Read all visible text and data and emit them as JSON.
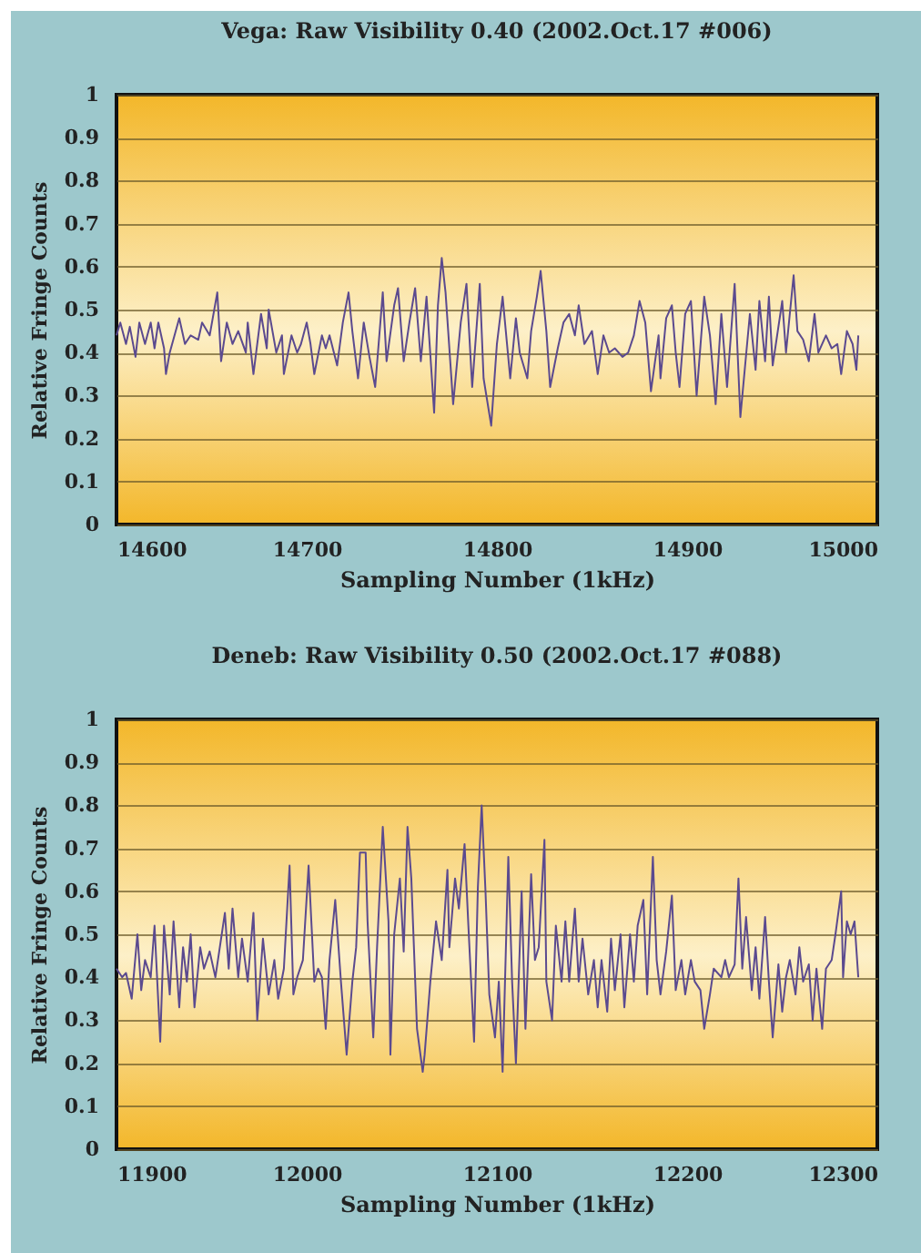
{
  "chart_data": [
    {
      "type": "line",
      "title": "Vega: Raw Visibility 0.40 (2002.Oct.17 #006)",
      "xlabel": "Sampling Number (1kHz)",
      "ylabel": "Relative Fringe Counts",
      "xlim": [
        14600,
        15000
      ],
      "xticks": [
        14600,
        14700,
        14800,
        14900,
        15000
      ],
      "ylim": [
        0,
        1
      ],
      "yticks": [
        0,
        0.1,
        0.2,
        0.3,
        0.4,
        0.5,
        0.6,
        0.7,
        0.8,
        0.9,
        1
      ],
      "grid": "y",
      "line_style": "solid",
      "x": [
        14600,
        14602,
        14605,
        14607,
        14610,
        14612,
        14615,
        14618,
        14620,
        14622,
        14625,
        14626,
        14628,
        14633,
        14636,
        14639,
        14643,
        14645,
        14649,
        14653,
        14655,
        14658,
        14661,
        14664,
        14668,
        14669,
        14672,
        14676,
        14679,
        14680,
        14684,
        14687,
        14688,
        14692,
        14695,
        14697,
        14700,
        14702,
        14704,
        14708,
        14710,
        14712,
        14716,
        14719,
        14722,
        14724,
        14727,
        14730,
        14733,
        14736,
        14740,
        14742,
        14746,
        14748,
        14751,
        14754,
        14757,
        14760,
        14763,
        14767,
        14769,
        14771,
        14773,
        14777,
        14781,
        14784,
        14787,
        14791,
        14793,
        14797,
        14800,
        14803,
        14807,
        14810,
        14812,
        14816,
        14818,
        14821,
        14823,
        14826,
        14828,
        14832,
        14835,
        14838,
        14841,
        14843,
        14846,
        14850,
        14853,
        14856,
        14859,
        14862,
        14866,
        14869,
        14872,
        14875,
        14878,
        14881,
        14885,
        14886,
        14889,
        14892,
        14894,
        14896,
        14899,
        14902,
        14905,
        14909,
        14912,
        14915,
        14918,
        14921,
        14925,
        14928,
        14933,
        14936,
        14938,
        14941,
        14943,
        14945,
        14950,
        14952,
        14956,
        14958,
        14961,
        14964,
        14967,
        14969,
        14973,
        14976,
        14979,
        14981,
        14984,
        14987,
        14989,
        14990
      ],
      "series": [
        {
          "color": "#5b4a8f",
          "values": [
            0.44,
            0.47,
            0.42,
            0.46,
            0.39,
            0.47,
            0.42,
            0.47,
            0.41,
            0.47,
            0.41,
            0.35,
            0.4,
            0.48,
            0.42,
            0.44,
            0.43,
            0.47,
            0.44,
            0.54,
            0.38,
            0.47,
            0.42,
            0.45,
            0.4,
            0.47,
            0.35,
            0.49,
            0.41,
            0.5,
            0.4,
            0.44,
            0.35,
            0.44,
            0.4,
            0.42,
            0.47,
            0.42,
            0.35,
            0.44,
            0.41,
            0.44,
            0.37,
            0.47,
            0.54,
            0.45,
            0.34,
            0.47,
            0.39,
            0.32,
            0.54,
            0.38,
            0.51,
            0.55,
            0.38,
            0.47,
            0.55,
            0.38,
            0.53,
            0.26,
            0.51,
            0.62,
            0.54,
            0.28,
            0.47,
            0.56,
            0.32,
            0.56,
            0.34,
            0.23,
            0.42,
            0.53,
            0.34,
            0.48,
            0.4,
            0.34,
            0.45,
            0.53,
            0.59,
            0.45,
            0.32,
            0.41,
            0.47,
            0.49,
            0.44,
            0.51,
            0.42,
            0.45,
            0.35,
            0.44,
            0.4,
            0.41,
            0.39,
            0.4,
            0.44,
            0.52,
            0.47,
            0.31,
            0.44,
            0.34,
            0.48,
            0.51,
            0.4,
            0.32,
            0.49,
            0.52,
            0.3,
            0.53,
            0.44,
            0.28,
            0.49,
            0.32,
            0.56,
            0.25,
            0.49,
            0.36,
            0.52,
            0.38,
            0.53,
            0.37,
            0.52,
            0.4,
            0.58,
            0.45,
            0.43,
            0.38,
            0.49,
            0.4,
            0.44,
            0.41,
            0.42,
            0.35,
            0.45,
            0.42,
            0.36,
            0.44
          ]
        }
      ]
    },
    {
      "type": "line",
      "title": "Deneb: Raw Visibility 0.50 (2002.Oct.17 #088)",
      "xlabel": "Sampling Number (1kHz)",
      "ylabel": "Relative Fringe Counts",
      "xlim": [
        11900,
        12300
      ],
      "xticks": [
        11900,
        12000,
        12100,
        12200,
        12300
      ],
      "ylim": [
        0,
        1
      ],
      "yticks": [
        0,
        0.1,
        0.2,
        0.3,
        0.4,
        0.5,
        0.6,
        0.7,
        0.8,
        0.9,
        1
      ],
      "grid": "y",
      "line_style": "solid",
      "x": [
        11900,
        11903,
        11905,
        11908,
        11911,
        11913,
        11915,
        11918,
        11920,
        11923,
        11925,
        11928,
        11930,
        11933,
        11935,
        11937,
        11939,
        11941,
        11944,
        11946,
        11949,
        11952,
        11954,
        11957,
        11959,
        11961,
        11964,
        11966,
        11969,
        11972,
        11974,
        11977,
        11980,
        11983,
        11985,
        11988,
        11991,
        11993,
        11995,
        11998,
        12001,
        12004,
        12006,
        12008,
        12010,
        12012,
        12015,
        12018,
        12021,
        12024,
        12026,
        12028,
        12031,
        12032,
        12035,
        12037,
        12040,
        12043,
        12044,
        12046,
        12049,
        12051,
        12053,
        12055,
        12058,
        12061,
        12062,
        12065,
        12068,
        12071,
        12074,
        12075,
        12078,
        12080,
        12083,
        12085,
        12088,
        12090,
        12092,
        12094,
        12096,
        12099,
        12101,
        12103,
        12106,
        12108,
        12110,
        12113,
        12115,
        12118,
        12120,
        12122,
        12125,
        12126,
        12129,
        12131,
        12134,
        12136,
        12138,
        12141,
        12143,
        12145,
        12148,
        12151,
        12153,
        12155,
        12158,
        12160,
        12162,
        12165,
        12167,
        12170,
        12172,
        12174,
        12177,
        12179,
        12182,
        12184,
        12186,
        12189,
        12192,
        12194,
        12197,
        12199,
        12202,
        12204,
        12207,
        12209,
        12212,
        12214,
        12218,
        12220,
        12222,
        12225,
        12227,
        12229,
        12231,
        12234,
        12236,
        12238,
        12241,
        12243,
        12245,
        12248,
        12250,
        12252,
        12254,
        12257,
        12259,
        12261,
        12264,
        12266,
        12268,
        12271,
        12273,
        12276,
        12278,
        12281,
        12282,
        12284,
        12286,
        12288,
        12290
      ],
      "series": [
        {
          "color": "#5b4a8f",
          "values": [
            0.42,
            0.4,
            0.41,
            0.35,
            0.5,
            0.37,
            0.44,
            0.4,
            0.52,
            0.25,
            0.52,
            0.36,
            0.53,
            0.33,
            0.47,
            0.39,
            0.5,
            0.33,
            0.47,
            0.42,
            0.46,
            0.4,
            0.46,
            0.55,
            0.42,
            0.56,
            0.4,
            0.49,
            0.39,
            0.55,
            0.3,
            0.49,
            0.36,
            0.44,
            0.35,
            0.42,
            0.66,
            0.36,
            0.4,
            0.44,
            0.66,
            0.39,
            0.42,
            0.4,
            0.28,
            0.44,
            0.58,
            0.39,
            0.22,
            0.39,
            0.47,
            0.69,
            0.69,
            0.53,
            0.26,
            0.47,
            0.75,
            0.53,
            0.22,
            0.5,
            0.63,
            0.46,
            0.75,
            0.63,
            0.28,
            0.18,
            0.22,
            0.39,
            0.53,
            0.44,
            0.65,
            0.47,
            0.63,
            0.56,
            0.71,
            0.52,
            0.25,
            0.61,
            0.8,
            0.6,
            0.36,
            0.26,
            0.39,
            0.18,
            0.68,
            0.39,
            0.2,
            0.6,
            0.28,
            0.64,
            0.44,
            0.47,
            0.72,
            0.39,
            0.3,
            0.52,
            0.39,
            0.53,
            0.39,
            0.56,
            0.39,
            0.49,
            0.36,
            0.44,
            0.33,
            0.44,
            0.32,
            0.49,
            0.37,
            0.5,
            0.33,
            0.5,
            0.39,
            0.52,
            0.58,
            0.36,
            0.68,
            0.44,
            0.36,
            0.46,
            0.59,
            0.37,
            0.44,
            0.36,
            0.44,
            0.39,
            0.37,
            0.28,
            0.36,
            0.42,
            0.4,
            0.44,
            0.4,
            0.43,
            0.63,
            0.42,
            0.54,
            0.37,
            0.47,
            0.35,
            0.54,
            0.39,
            0.26,
            0.43,
            0.32,
            0.4,
            0.44,
            0.36,
            0.47,
            0.39,
            0.43,
            0.3,
            0.42,
            0.28,
            0.42,
            0.44,
            0.5,
            0.6,
            0.4,
            0.53,
            0.5,
            0.53,
            0.4
          ]
        }
      ]
    }
  ]
}
